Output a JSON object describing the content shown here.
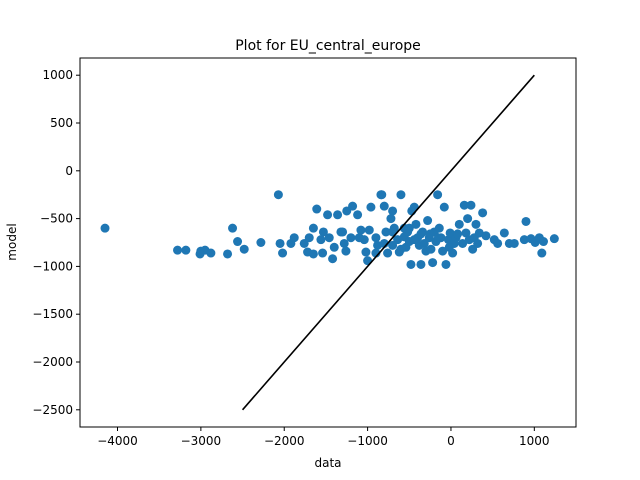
{
  "chart_data": {
    "type": "scatter",
    "title": "Plot for EU_central_europe",
    "xlabel": "data",
    "ylabel": "model",
    "xlim": [
      -4450,
      1500
    ],
    "ylim": [
      -2680,
      1180
    ],
    "xticks": [
      -4000,
      -3000,
      -2000,
      -1000,
      0,
      1000
    ],
    "yticks": [
      -2500,
      -2000,
      -1500,
      -1000,
      -500,
      0,
      500,
      1000
    ],
    "grid": false,
    "legend": "none",
    "colors": {
      "points": "#1f77b4",
      "line": "#000000"
    },
    "reference_line": {
      "x": [
        -2500,
        1000
      ],
      "y": [
        -2500,
        1000
      ]
    },
    "points": [
      [
        -4150,
        -600
      ],
      [
        -3280,
        -830
      ],
      [
        -3180,
        -830
      ],
      [
        -3000,
        -840
      ],
      [
        -2950,
        -830
      ],
      [
        -2880,
        -860
      ],
      [
        -3010,
        -870
      ],
      [
        -2680,
        -870
      ],
      [
        -2620,
        -600
      ],
      [
        -2560,
        -740
      ],
      [
        -2480,
        -820
      ],
      [
        -2280,
        -750
      ],
      [
        -2070,
        -250
      ],
      [
        -2050,
        -760
      ],
      [
        -2020,
        -860
      ],
      [
        -1920,
        -760
      ],
      [
        -1880,
        -700
      ],
      [
        -1760,
        -760
      ],
      [
        -1720,
        -850
      ],
      [
        -1700,
        -700
      ],
      [
        -1650,
        -600
      ],
      [
        -1610,
        -400
      ],
      [
        -1560,
        -720
      ],
      [
        -1540,
        -860
      ],
      [
        -1530,
        -640
      ],
      [
        -1480,
        -460
      ],
      [
        -1460,
        -700
      ],
      [
        -1420,
        -920
      ],
      [
        -1400,
        -800
      ],
      [
        -1360,
        -460
      ],
      [
        -1320,
        -640
      ],
      [
        -1280,
        -760
      ],
      [
        -1260,
        -840
      ],
      [
        -1250,
        -420
      ],
      [
        -1200,
        -700
      ],
      [
        -1180,
        -370
      ],
      [
        -1120,
        -460
      ],
      [
        -1080,
        -620
      ],
      [
        -1040,
        -720
      ],
      [
        -1020,
        -850
      ],
      [
        -1000,
        -940
      ],
      [
        -980,
        -620
      ],
      [
        -960,
        -380
      ],
      [
        -900,
        -700
      ],
      [
        -880,
        -780
      ],
      [
        -840,
        -250
      ],
      [
        -830,
        -250
      ],
      [
        -800,
        -370
      ],
      [
        -780,
        -640
      ],
      [
        -760,
        -860
      ],
      [
        -720,
        -500
      ],
      [
        -700,
        -780
      ],
      [
        -680,
        -600
      ],
      [
        -640,
        -720
      ],
      [
        -620,
        -850
      ],
      [
        -600,
        -250
      ],
      [
        -560,
        -690
      ],
      [
        -540,
        -800
      ],
      [
        -520,
        -640
      ],
      [
        -500,
        -740
      ],
      [
        -480,
        -980
      ],
      [
        -470,
        -420
      ],
      [
        -440,
        -380
      ],
      [
        -420,
        -560
      ],
      [
        -400,
        -700
      ],
      [
        -380,
        -780
      ],
      [
        -360,
        -980
      ],
      [
        -340,
        -640
      ],
      [
        -320,
        -760
      ],
      [
        -300,
        -840
      ],
      [
        -280,
        -520
      ],
      [
        -260,
        -700
      ],
      [
        -240,
        -820
      ],
      [
        -220,
        -960
      ],
      [
        -200,
        -640
      ],
      [
        -180,
        -740
      ],
      [
        -160,
        -250
      ],
      [
        -140,
        -600
      ],
      [
        -120,
        -700
      ],
      [
        -100,
        -840
      ],
      [
        -80,
        -380
      ],
      [
        -60,
        -980
      ],
      [
        -30,
        -720
      ],
      [
        -10,
        -650
      ],
      [
        20,
        -860
      ],
      [
        40,
        -760
      ],
      [
        60,
        -700
      ],
      [
        100,
        -560
      ],
      [
        140,
        -760
      ],
      [
        160,
        -360
      ],
      [
        180,
        -650
      ],
      [
        200,
        -500
      ],
      [
        220,
        -720
      ],
      [
        240,
        -360
      ],
      [
        260,
        -820
      ],
      [
        280,
        -700
      ],
      [
        300,
        -560
      ],
      [
        320,
        -760
      ],
      [
        340,
        -650
      ],
      [
        380,
        -440
      ],
      [
        420,
        -680
      ],
      [
        520,
        -720
      ],
      [
        560,
        -760
      ],
      [
        640,
        -650
      ],
      [
        700,
        -760
      ],
      [
        760,
        -760
      ],
      [
        880,
        -720
      ],
      [
        900,
        -530
      ],
      [
        960,
        -710
      ],
      [
        1010,
        -750
      ],
      [
        1060,
        -700
      ],
      [
        1090,
        -860
      ],
      [
        1110,
        -740
      ],
      [
        1240,
        -710
      ],
      [
        -1300,
        -640
      ],
      [
        -900,
        -860
      ],
      [
        -700,
        -640
      ],
      [
        -560,
        -600
      ],
      [
        -440,
        -720
      ],
      [
        -360,
        -660
      ],
      [
        -250,
        -660
      ],
      [
        -150,
        -700
      ],
      [
        -20,
        -800
      ],
      [
        80,
        -660
      ],
      [
        -1650,
        -870
      ],
      [
        -1100,
        -700
      ],
      [
        -800,
        -760
      ],
      [
        -600,
        -820
      ],
      [
        -500,
        -600
      ],
      [
        -700,
        -420
      ]
    ]
  }
}
